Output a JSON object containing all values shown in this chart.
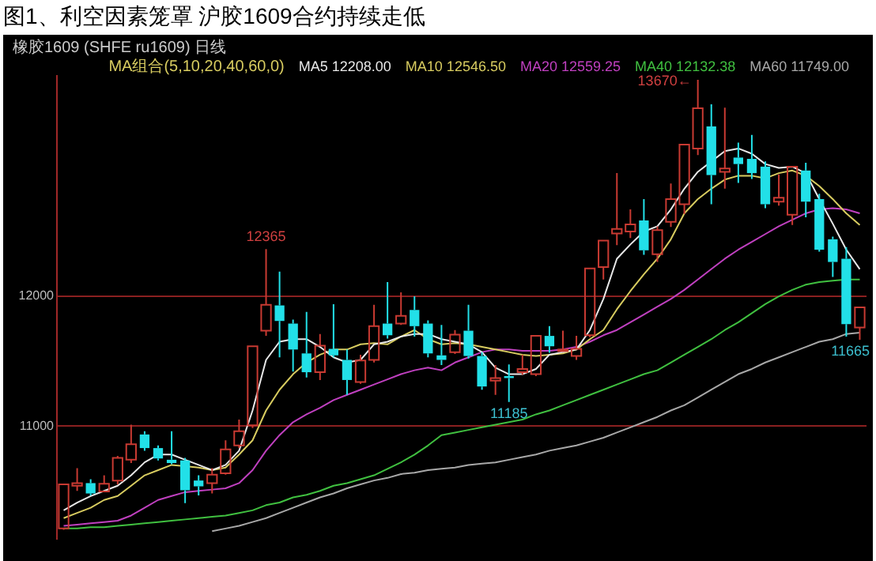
{
  "chart_data": {
    "type": "candlestick",
    "title": "图1、利空因素笼罩 沪胶1609合约持续走低",
    "subtitle": "橡胶1609 (SHFE ru1609) 日线",
    "legend_title": "MA组合(5,10,20,40,60,0)",
    "legend": "top right",
    "grid": "y",
    "tick_labels": "y",
    "categories": [
      null,
      null,
      null,
      null,
      null,
      null,
      null,
      null,
      null,
      null,
      null,
      null,
      null,
      null,
      null,
      null,
      null,
      null,
      null,
      null,
      null,
      null,
      null,
      null,
      null,
      null,
      null,
      null,
      null,
      null,
      null,
      null,
      null,
      null,
      null,
      null,
      null,
      null,
      null,
      null,
      null,
      null,
      null,
      null,
      null,
      null,
      null,
      null,
      null,
      null,
      null,
      null,
      null,
      null,
      null,
      null,
      null,
      null,
      null,
      null
    ],
    "ylim": [
      10130,
      13700
    ],
    "yticks": [
      11000,
      12000
    ],
    "ohlc": [
      [
        10210,
        10550,
        10200,
        10550
      ],
      [
        10540,
        10675,
        10500,
        10560
      ],
      [
        10560,
        10590,
        10465,
        10480
      ],
      [
        10495,
        10620,
        10495,
        10555
      ],
      [
        10580,
        10770,
        10550,
        10755
      ],
      [
        10740,
        11010,
        10715,
        10860
      ],
      [
        10935,
        10960,
        10810,
        10830
      ],
      [
        10830,
        10850,
        10735,
        10750
      ],
      [
        10740,
        10960,
        10705,
        10715
      ],
      [
        10735,
        10755,
        10405,
        10505
      ],
      [
        10580,
        10620,
        10465,
        10535
      ],
      [
        10560,
        10675,
        10480,
        10625
      ],
      [
        10635,
        10890,
        10625,
        10820
      ],
      [
        10850,
        11050,
        10830,
        10960
      ],
      [
        11005,
        11615,
        10985,
        11615
      ],
      [
        11735,
        12365,
        11695,
        11935
      ],
      [
        11930,
        12190,
        11530,
        11810
      ],
      [
        11790,
        11820,
        11420,
        11590
      ],
      [
        11560,
        11880,
        11375,
        11415
      ],
      [
        11415,
        11710,
        11355,
        11620
      ],
      [
        11595,
        11940,
        11530,
        11545
      ],
      [
        11510,
        11590,
        11240,
        11355
      ],
      [
        11340,
        11550,
        11325,
        11505
      ],
      [
        11510,
        11935,
        11490,
        11770
      ],
      [
        11790,
        12110,
        11675,
        11700
      ],
      [
        11790,
        12030,
        11780,
        11850
      ],
      [
        11895,
        12000,
        11690,
        11770
      ],
      [
        11790,
        11815,
        11530,
        11560
      ],
      [
        11545,
        11780,
        11470,
        11510
      ],
      [
        11570,
        11740,
        11555,
        11705
      ],
      [
        11735,
        11935,
        11520,
        11540
      ],
      [
        11540,
        11570,
        11280,
        11305
      ],
      [
        11350,
        11470,
        11240,
        11370
      ],
      [
        11385,
        11475,
        11185,
        11370
      ],
      [
        11415,
        11550,
        11395,
        11440
      ],
      [
        11400,
        11695,
        11385,
        11695
      ],
      [
        11695,
        11770,
        11565,
        11615
      ],
      [
        11585,
        11735,
        11580,
        11590
      ],
      [
        11540,
        11695,
        11510,
        11595
      ],
      [
        11700,
        12215,
        11685,
        12215
      ],
      [
        12225,
        12430,
        12130,
        12430
      ],
      [
        12485,
        12950,
        12395,
        12520
      ],
      [
        12500,
        12670,
        12450,
        12555
      ],
      [
        12585,
        12750,
        12320,
        12355
      ],
      [
        12325,
        12540,
        12265,
        12510
      ],
      [
        12575,
        12870,
        12535,
        12750
      ],
      [
        12710,
        13170,
        12635,
        13170
      ],
      [
        13140,
        13670,
        13090,
        13450
      ],
      [
        13310,
        13480,
        12710,
        12935
      ],
      [
        12960,
        13455,
        12830,
        12985
      ],
      [
        13070,
        13185,
        12875,
        13020
      ],
      [
        13060,
        13245,
        12905,
        12950
      ],
      [
        13000,
        13040,
        12680,
        12710
      ],
      [
        12730,
        12940,
        12700,
        12760
      ],
      [
        12630,
        13000,
        12550,
        13000
      ],
      [
        12970,
        13030,
        12610,
        12730
      ],
      [
        12750,
        12790,
        12345,
        12360
      ],
      [
        12440,
        12460,
        12150,
        12265
      ],
      [
        12290,
        12380,
        11690,
        11785
      ],
      [
        11760,
        11915,
        11665,
        11915
      ]
    ],
    "annotations": [
      "13670←",
      {
        "text": "12365",
        "y": 12365
      },
      {
        "text": "11185",
        "y": 11185
      },
      {
        "text": "11665",
        "y": 11665
      }
    ],
    "series": [
      {
        "name": "MA5 12208.00",
        "type": "line",
        "color": "#e8e8e8",
        "values": [
          10350,
          10410,
          10460,
          10500,
          10540,
          10620,
          10720,
          10780,
          10780,
          10740,
          10700,
          10660,
          10700,
          10810,
          11120,
          11510,
          11650,
          11670,
          11670,
          11610,
          11530,
          11490,
          11510,
          11630,
          11650,
          11690,
          11710,
          11710,
          11670,
          11650,
          11630,
          11570,
          11450,
          11400,
          11400,
          11440,
          11550,
          11570,
          11590,
          11740,
          11980,
          12290,
          12400,
          12500,
          12540,
          12670,
          12830,
          12960,
          13040,
          13120,
          13140,
          13100,
          13020,
          12990,
          13000,
          12950,
          12750,
          12560,
          12360,
          12210
        ]
      },
      {
        "name": "MA10 12546.50",
        "type": "line",
        "color": "#d8cc60",
        "values": [
          10290,
          10330,
          10370,
          10430,
          10460,
          10540,
          10620,
          10660,
          10700,
          10690,
          10680,
          10660,
          10680,
          10780,
          10890,
          11120,
          11280,
          11400,
          11490,
          11550,
          11590,
          11590,
          11630,
          11640,
          11630,
          11690,
          11740,
          11670,
          11630,
          11640,
          11630,
          11610,
          11590,
          11570,
          11550,
          11540,
          11550,
          11560,
          11590,
          11670,
          11740,
          11900,
          12040,
          12170,
          12290,
          12440,
          12640,
          12750,
          12830,
          12900,
          12930,
          12930,
          12910,
          12950,
          12970,
          12930,
          12850,
          12750,
          12640,
          12550
        ]
      },
      {
        "name": "MA20 12559.25",
        "type": "line",
        "color": "#c040c0",
        "values": [
          10230,
          10240,
          10250,
          10260,
          10270,
          10310,
          10370,
          10430,
          10460,
          10490,
          10500,
          10510,
          10520,
          10560,
          10660,
          10810,
          10930,
          11030,
          11090,
          11140,
          11200,
          11240,
          11280,
          11320,
          11360,
          11400,
          11430,
          11450,
          11430,
          11490,
          11530,
          11570,
          11590,
          11590,
          11580,
          11580,
          11580,
          11590,
          11610,
          11650,
          11700,
          11740,
          11800,
          11860,
          11920,
          11980,
          12050,
          12130,
          12210,
          12290,
          12360,
          12420,
          12480,
          12540,
          12590,
          12640,
          12670,
          12680,
          12670,
          12640
        ]
      },
      {
        "name": "MA40 12132.38",
        "type": "line",
        "color": "#40c040",
        "values": [
          10210,
          10210,
          10220,
          10220,
          10230,
          10240,
          10250,
          10260,
          10270,
          10280,
          10290,
          10300,
          10310,
          10330,
          10350,
          10390,
          10410,
          10450,
          10470,
          10500,
          10540,
          10560,
          10590,
          10620,
          10670,
          10720,
          10780,
          10850,
          10930,
          10950,
          10970,
          10990,
          11010,
          11030,
          11050,
          11090,
          11120,
          11160,
          11200,
          11240,
          11280,
          11320,
          11360,
          11400,
          11430,
          11490,
          11550,
          11610,
          11670,
          11740,
          11800,
          11870,
          11940,
          12000,
          12050,
          12090,
          12110,
          12120,
          12130,
          12130
        ]
      },
      {
        "name": "MA60 11749.00",
        "type": "line",
        "color": "#a8a8a8",
        "values": [
          null,
          null,
          null,
          null,
          null,
          null,
          null,
          null,
          null,
          null,
          null,
          10190,
          10210,
          10230,
          10260,
          10290,
          10330,
          10370,
          10410,
          10450,
          10480,
          10520,
          10550,
          10580,
          10600,
          10630,
          10640,
          10660,
          10670,
          10680,
          10700,
          10710,
          10720,
          10740,
          10760,
          10780,
          10810,
          10830,
          10850,
          10880,
          10910,
          10950,
          10990,
          11030,
          11070,
          11120,
          11160,
          11220,
          11280,
          11340,
          11400,
          11440,
          11490,
          11530,
          11570,
          11610,
          11650,
          11670,
          11710,
          11720
        ]
      }
    ]
  }
}
